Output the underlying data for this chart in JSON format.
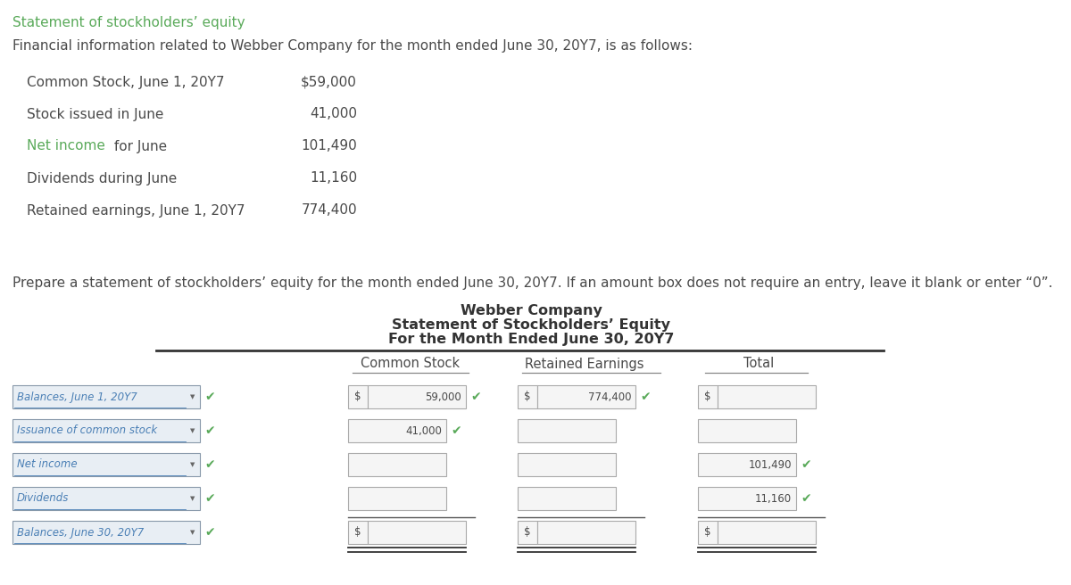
{
  "title_green": "Statement of stockholders’ equity",
  "intro_text": "Financial information related to Webber Company for the month ended June 30, 20Y7, is as follows:",
  "info_items": [
    {
      "label": "Common Stock, June 1, 20Y7",
      "value": "$59,000",
      "net_income": false
    },
    {
      "label": "Stock issued in June",
      "value": "41,000",
      "net_income": false
    },
    {
      "label": "Net income",
      "value": "101,490",
      "net_income": true
    },
    {
      "label": "Dividends during June",
      "value": "11,160",
      "net_income": false
    },
    {
      "label": "Retained earnings, June 1, 20Y7",
      "value": "774,400",
      "net_income": false
    }
  ],
  "prepare_text": "Prepare a statement of stockholders’ equity for the month ended June 30, 20Y7. If an amount box does not require an entry, leave it blank or enter “0”.",
  "company_name": "Webber Company",
  "stmt_title": "Statement of Stockholders’ Equity",
  "stmt_period": "For the Month Ended June 30, 20Y7",
  "col_headers": [
    "Common Stock",
    "Retained Earnings",
    "Total"
  ],
  "rows": [
    {
      "label": "Balances, June 1, 20Y7",
      "col1_dollar": true,
      "col1_value": "59,000",
      "col1_check": true,
      "col2_dollar": true,
      "col2_value": "774,400",
      "col2_check": true,
      "col3_dollar": true,
      "col3_value": "",
      "col3_check": false,
      "is_last": false
    },
    {
      "label": "Issuance of common stock",
      "col1_dollar": false,
      "col1_value": "41,000",
      "col1_check": true,
      "col2_dollar": false,
      "col2_value": "",
      "col2_check": false,
      "col3_dollar": false,
      "col3_value": "",
      "col3_check": false,
      "is_last": false
    },
    {
      "label": "Net income",
      "col1_dollar": false,
      "col1_value": "",
      "col1_check": false,
      "col2_dollar": false,
      "col2_value": "",
      "col2_check": false,
      "col3_dollar": false,
      "col3_value": "101,490",
      "col3_check": true,
      "is_last": false
    },
    {
      "label": "Dividends",
      "col1_dollar": false,
      "col1_value": "",
      "col1_check": false,
      "col2_dollar": false,
      "col2_value": "",
      "col2_check": false,
      "col3_dollar": false,
      "col3_value": "11,160",
      "col3_check": true,
      "is_last": false
    },
    {
      "label": "Balances, June 30, 20Y7",
      "col1_dollar": true,
      "col1_value": "",
      "col1_check": false,
      "col2_dollar": true,
      "col2_value": "",
      "col2_check": false,
      "col3_dollar": true,
      "col3_value": "",
      "col3_check": false,
      "is_last": true
    }
  ],
  "bg_color": "#ffffff",
  "green_color": "#5aaa5a",
  "blue_color": "#4a7fb5",
  "text_color": "#4a4a4a",
  "dark_text": "#333333"
}
